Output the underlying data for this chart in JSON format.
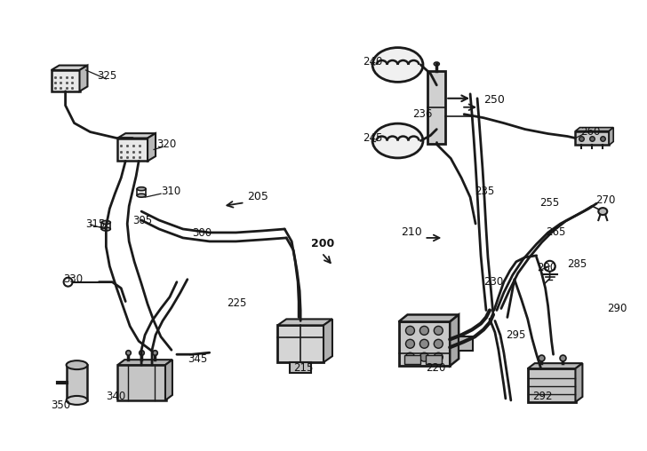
{
  "background_color": "#ffffff",
  "line_color": "#1a1a1a",
  "text_color": "#111111",
  "lw_thick": 3.0,
  "lw_med": 2.0,
  "lw_thin": 1.2,
  "figsize": [
    7.28,
    5.08
  ],
  "dpi": 100
}
